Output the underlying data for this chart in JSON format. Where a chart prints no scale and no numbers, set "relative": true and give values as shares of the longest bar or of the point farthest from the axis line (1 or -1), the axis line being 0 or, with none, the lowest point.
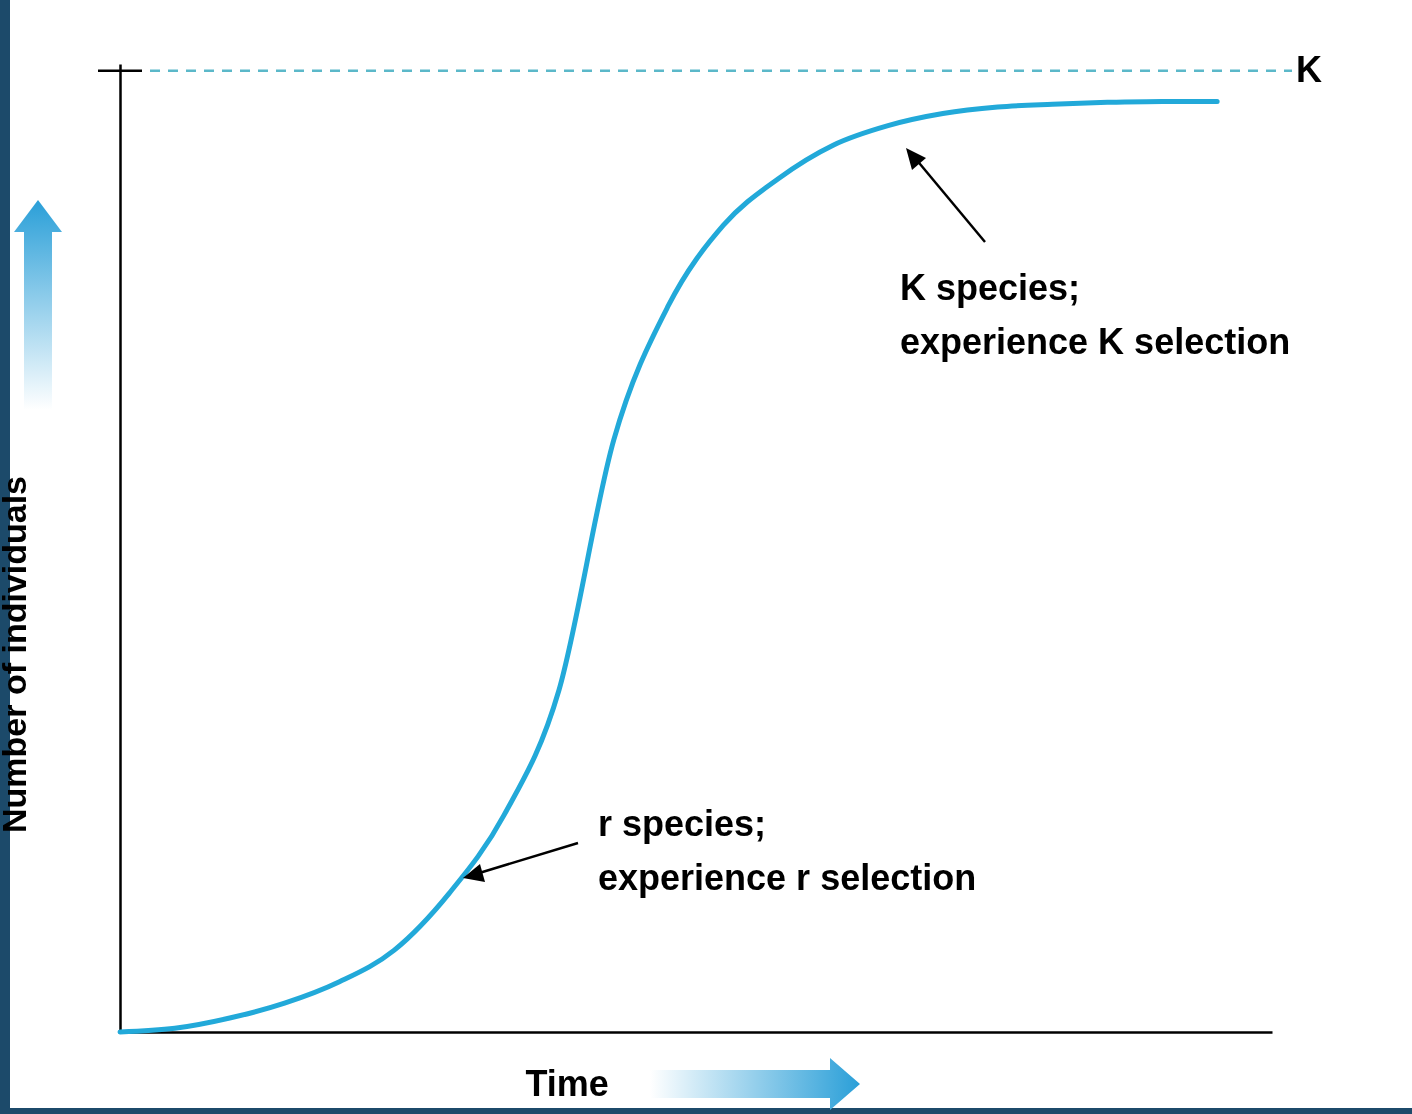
{
  "chart_data": {
    "type": "line",
    "relative": true,
    "xlabel": "Time",
    "ylabel": "Number of individuals",
    "categories": [
      null,
      null,
      null,
      null,
      null,
      null,
      null,
      null,
      null,
      null,
      null,
      null,
      null,
      null,
      null,
      null,
      null,
      null,
      null,
      null,
      null,
      null
    ],
    "series": [
      {
        "color": "#22a9d9",
        "values": [
          0,
          0.004,
          0.015,
          0.031,
          0.054,
          0.088,
          0.149,
          0.233,
          0.367,
          0.636,
          0.781,
          0.867,
          0.917,
          0.953,
          0.974,
          0.987,
          0.994,
          0.997,
          0.999,
          1,
          1,
          null
        ]
      }
    ],
    "ref_lines": [
      {
        "axis": "y",
        "value": 1.033,
        "label": "K",
        "color": "#5bb8c9",
        "line_style": "dashed"
      }
    ],
    "annotations": [
      "K species;\nexperience K selection",
      "r species;\nexperience r selection"
    ],
    "grid": false,
    "marker": "none",
    "line_style": "solid"
  }
}
